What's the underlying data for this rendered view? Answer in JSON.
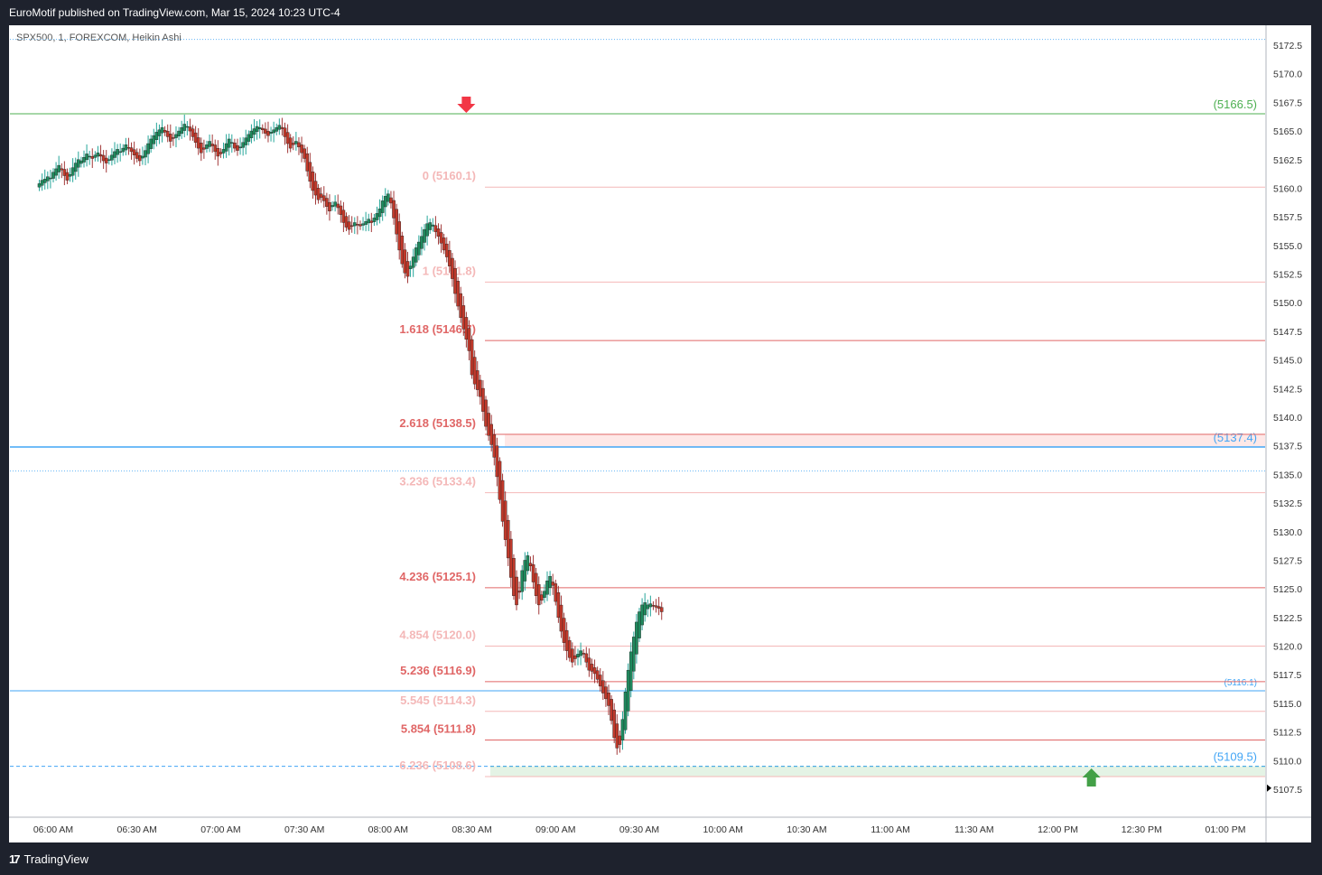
{
  "header": {
    "publisher": "EuroMotif published on TradingView.com, Mar 15, 2024 10:23 UTC-4"
  },
  "footer": {
    "brand": "TradingView"
  },
  "colors": {
    "up": "#26a69a",
    "upBody": "#1f8a5e",
    "down": "#a33a3a",
    "downBody": "#c0392b",
    "fib_light": "#f4b8b8",
    "fib_red": "#e06666",
    "blue": "#42a5f5",
    "green": "#4caf50"
  },
  "chart_data": {
    "type": "candlestick",
    "symbol_label": "SPX500, 1, FOREXCOM, Heikin Ashi",
    "y_range": [
      5105.5,
      5174.5
    ],
    "y_ticks": [
      "5172.5",
      "5170.0",
      "5167.5",
      "5165.0",
      "5162.5",
      "5160.0",
      "5157.5",
      "5155.0",
      "5152.5",
      "5150.0",
      "5147.5",
      "5145.0",
      "5142.5",
      "5140.0",
      "5137.5",
      "5135.0",
      "5132.5",
      "5130.0",
      "5127.5",
      "5125.0",
      "5122.5",
      "5120.0",
      "5117.5",
      "5115.0",
      "5112.5",
      "5110.0",
      "5107.5"
    ],
    "x_ticks": [
      "06:00 AM",
      "06:30 AM",
      "07:00 AM",
      "07:30 AM",
      "08:00 AM",
      "08:30 AM",
      "09:00 AM",
      "09:30 AM",
      "10:00 AM",
      "10:30 AM",
      "11:00 AM",
      "11:30 AM",
      "12:00 PM",
      "12:30 PM",
      "01:00 PM"
    ],
    "fib_levels": [
      {
        "label": "0 (5160.1)",
        "value": 5160.1,
        "tone": "light"
      },
      {
        "label": "1 (5151.8)",
        "value": 5151.8,
        "tone": "light"
      },
      {
        "label": "1.618 (5146.7)",
        "value": 5146.7,
        "tone": "red"
      },
      {
        "label": "2.618 (5138.5)",
        "value": 5138.5,
        "tone": "red"
      },
      {
        "label": "3.236 (5133.4)",
        "value": 5133.4,
        "tone": "light"
      },
      {
        "label": "4.236 (5125.1)",
        "value": 5125.1,
        "tone": "red"
      },
      {
        "label": "4.854 (5120.0)",
        "value": 5120.0,
        "tone": "light"
      },
      {
        "label": "5.236 (5116.9)",
        "value": 5116.9,
        "tone": "red"
      },
      {
        "label": "5.545 (5114.3)",
        "value": 5114.3,
        "tone": "light"
      },
      {
        "label": "5.854 (5111.8)",
        "value": 5111.8,
        "tone": "red"
      },
      {
        "label": "6.236 (5108.6)",
        "value": 5108.6,
        "tone": "light"
      }
    ],
    "horizontal_levels": [
      {
        "label": "(5166.5)",
        "value": 5166.5,
        "color": "green"
      },
      {
        "label": "(5137.4)",
        "value": 5137.4,
        "color": "blue"
      },
      {
        "label": "(5116.1)",
        "value": 5116.1,
        "color": "blue"
      },
      {
        "label": "(5109.5)",
        "value": 5109.5,
        "color": "blue"
      }
    ],
    "dotted_levels": [
      5173.0,
      5135.3
    ],
    "zones": [
      {
        "from": 5137.4,
        "to": 5138.5,
        "color": "red"
      },
      {
        "from": 5108.6,
        "to": 5109.5,
        "color": "green"
      }
    ],
    "markers": [
      {
        "type": "arrow-down",
        "time": "08:28 AM",
        "value": 5166.5,
        "color": "red"
      },
      {
        "type": "arrow-up",
        "time": "12:12 PM",
        "value": 5108.6,
        "color": "green"
      }
    ],
    "last_price_marker": {
      "value": 5107.6
    },
    "series": [
      {
        "name": "SPX500",
        "time_start": "05:55 AM",
        "minutes_per_bar": 1,
        "closes": [
          5160.4,
          5160.7,
          5160.8,
          5161.0,
          5160.9,
          5161.4,
          5161.7,
          5162.0,
          5161.6,
          5161.1,
          5160.7,
          5161.2,
          5161.8,
          5162.2,
          5162.5,
          5162.4,
          5162.7,
          5163.0,
          5162.8,
          5162.6,
          5162.9,
          5163.1,
          5162.8,
          5162.4,
          5162.2,
          5162.5,
          5162.9,
          5163.2,
          5163.4,
          5163.2,
          5163.5,
          5163.8,
          5163.5,
          5163.2,
          5162.9,
          5162.6,
          5162.4,
          5162.8,
          5163.3,
          5163.9,
          5164.3,
          5164.6,
          5164.9,
          5165.1,
          5165.3,
          5164.9,
          5164.5,
          5164.1,
          5164.4,
          5164.7,
          5165.0,
          5165.3,
          5165.6,
          5165.4,
          5165.0,
          5164.5,
          5164.0,
          5163.5,
          5163.1,
          5163.4,
          5163.8,
          5164.1,
          5163.7,
          5163.2,
          5162.8,
          5163.0,
          5163.4,
          5163.9,
          5164.3,
          5164.0,
          5163.5,
          5163.3,
          5163.6,
          5164.0,
          5164.4,
          5164.7,
          5165.0,
          5165.2,
          5165.4,
          5165.3,
          5165.1,
          5164.8,
          5164.6,
          5164.9,
          5165.1,
          5165.3,
          5165.5,
          5165.2,
          5164.5,
          5163.9,
          5163.5,
          5163.8,
          5164.1,
          5163.6,
          5163.1,
          5162.6,
          5161.5,
          5160.6,
          5159.8,
          5159.4,
          5159.0,
          5159.2,
          5158.9,
          5158.4,
          5158.0,
          5158.5,
          5158.8,
          5158.3,
          5157.7,
          5157.0,
          5156.6,
          5156.4,
          5156.7,
          5157.0,
          5156.8,
          5156.7,
          5156.9,
          5157.1,
          5157.3,
          5157.0,
          5157.4,
          5157.8,
          5158.2,
          5158.9,
          5159.3,
          5159.5,
          5158.7,
          5157.4,
          5156.0,
          5154.6,
          5153.4,
          5152.6,
          5152.3,
          5153.2,
          5154.0,
          5154.8,
          5155.3,
          5155.8,
          5156.4,
          5156.9,
          5157.0,
          5156.8,
          5156.2,
          5155.8,
          5155.2,
          5154.6,
          5154.0,
          5153.2,
          5152.1,
          5150.8,
          5149.7,
          5148.7,
          5147.7,
          5146.8,
          5145.8,
          5143.7,
          5142.9,
          5142.4,
          5141.8,
          5140.5,
          5139.2,
          5138.4,
          5137.6,
          5136.5,
          5134.8,
          5132.8,
          5130.9,
          5129.3,
          5127.7,
          5126.0,
          5124.4,
          5123.6,
          5124.7,
          5126.6,
          5127.5,
          5127.9,
          5127.0,
          5125.6,
          5124.4,
          5123.6,
          5124.0,
          5124.8,
          5125.7,
          5126.1,
          5125.3,
          5123.9,
          5122.5,
          5121.3,
          5120.3,
          5119.6,
          5119.0,
          5118.6,
          5118.9,
          5119.3,
          5119.6,
          5119.3,
          5118.6,
          5117.9,
          5117.8,
          5117.6,
          5117.1,
          5116.5,
          5115.9,
          5115.4,
          5114.8,
          5113.5,
          5112.0,
          5111.1,
          5111.4,
          5113.6,
          5116.0,
          5117.9,
          5119.5,
          5120.8,
          5122.1,
          5123.0,
          5123.6,
          5123.8,
          5123.6,
          5123.7,
          5123.5,
          5123.4,
          5123.3,
          5123.0
        ]
      }
    ],
    "x_axis_label": "",
    "y_axis_label": ""
  }
}
